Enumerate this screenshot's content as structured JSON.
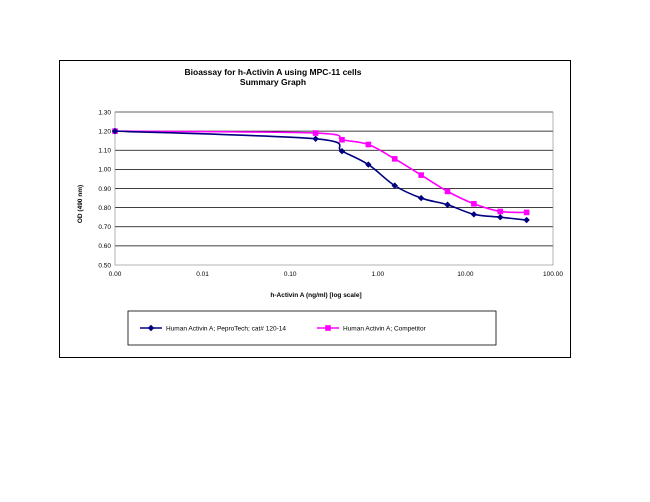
{
  "chart_data": {
    "type": "line",
    "title": [
      "Bioassay for h-Activin A using MPC-11 cells",
      "Summary Graph"
    ],
    "xlabel": "h-Activin A (ng/ml) [log scale]",
    "ylabel": "OD (490 nm)",
    "x_scale": "log",
    "x_ticks": [
      0.001,
      0.01,
      0.1,
      1,
      10,
      100
    ],
    "x_tick_labels": [
      "0.00",
      "0.01",
      "0.10",
      "1.00",
      "10.00",
      "100.00"
    ],
    "ylim": [
      0.5,
      1.3
    ],
    "y_ticks": [
      0.5,
      0.6,
      0.7,
      0.8,
      0.9,
      1.0,
      1.1,
      1.2,
      1.3
    ],
    "y_tick_labels": [
      "0.50",
      "0.60",
      "0.70",
      "0.80",
      "0.90",
      "1.00",
      "1.10",
      "1.20",
      "1.30"
    ],
    "grid": "horizontal",
    "legend_position": "bottom",
    "series": [
      {
        "name": "Human Activin A; PeproTech; cat# 120-14",
        "color": "#000080",
        "marker": "diamond",
        "x": [
          0.001,
          0.195,
          0.39,
          0.78,
          1.56,
          3.125,
          6.25,
          12.5,
          25,
          50
        ],
        "y": [
          1.2,
          1.16,
          1.095,
          1.025,
          0.915,
          0.85,
          0.815,
          0.765,
          0.75,
          0.735
        ]
      },
      {
        "name": "Human Activin A; Competitor",
        "color": "#ff00ff",
        "marker": "square",
        "x": [
          0.001,
          0.195,
          0.39,
          0.78,
          1.56,
          3.125,
          6.25,
          12.5,
          25,
          50
        ],
        "y": [
          1.2,
          1.19,
          1.155,
          1.13,
          1.055,
          0.97,
          0.885,
          0.82,
          0.78,
          0.775
        ]
      }
    ]
  }
}
